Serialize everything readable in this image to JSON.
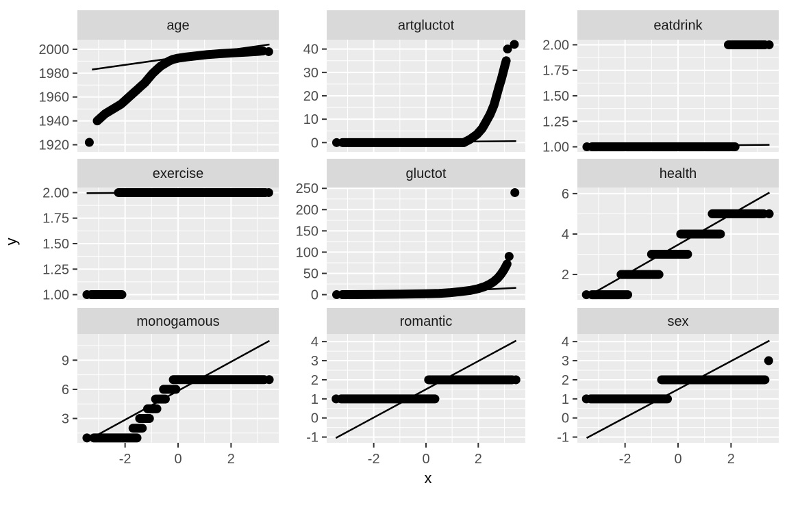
{
  "figure": {
    "xlabel": "x",
    "ylabel": "y"
  },
  "colors": {
    "background": "#FFFFFF",
    "panel_bg": "#EBEBEB",
    "strip_bg": "#D9D9D9",
    "grid": "#FFFFFF",
    "ticks": "#333333",
    "axis_text": "#4D4D4D",
    "strip_text": "#1A1A1A",
    "axis_title": "#000000",
    "points": "#000000",
    "ref_line": "#000000"
  },
  "chart_data": {
    "type": "scatter",
    "layout_hint": "3x3 ggplot2 facet_wrap grid of QQ plots, free y scales, grey panels with white gridlines, black points and black reference line, x axis only on bottom row",
    "xlabel": "x",
    "ylabel": "y",
    "x_domain": [
      -3.8,
      3.8
    ],
    "x_ticks": [
      -2,
      0,
      2
    ],
    "x_tick_labels": [
      "-2",
      "0",
      "2"
    ],
    "x_minor": [
      -3,
      -1,
      1,
      3
    ],
    "facets": [
      {
        "label": "age",
        "y_domain": [
          1914,
          2008
        ],
        "y_ticks": [
          1920,
          1940,
          1960,
          1980,
          2000
        ],
        "y_tick_labels": [
          "1920",
          "1940",
          "1960",
          "1980",
          "2000"
        ],
        "y_minor": [
          1930,
          1950,
          1970,
          1990
        ],
        "ref_line": [
          [
            -3.25,
            1983
          ],
          [
            3.45,
            2004
          ]
        ],
        "bands": [],
        "curve": [
          [
            -3.05,
            1940
          ],
          [
            -2.9,
            1943
          ],
          [
            -2.75,
            1946
          ],
          [
            -2.6,
            1948
          ],
          [
            -2.45,
            1950
          ],
          [
            -2.3,
            1952
          ],
          [
            -2.15,
            1954
          ],
          [
            -2.0,
            1957
          ],
          [
            -1.85,
            1960
          ],
          [
            -1.7,
            1963
          ],
          [
            -1.55,
            1966
          ],
          [
            -1.4,
            1969
          ],
          [
            -1.25,
            1972
          ],
          [
            -1.1,
            1976
          ],
          [
            -0.95,
            1980
          ],
          [
            -0.8,
            1983
          ],
          [
            -0.65,
            1986
          ],
          [
            -0.5,
            1988
          ],
          [
            -0.35,
            1990
          ],
          [
            -0.2,
            1991.5
          ],
          [
            0,
            1992.5
          ],
          [
            0.3,
            1993.5
          ],
          [
            0.7,
            1994.5
          ],
          [
            1.1,
            1995.5
          ],
          [
            1.6,
            1996.3
          ],
          [
            2.1,
            1997
          ],
          [
            2.6,
            1997.6
          ],
          [
            3.0,
            1998.2
          ],
          [
            3.2,
            1998.6
          ]
        ],
        "dots": [
          [
            -3.35,
            1922
          ],
          [
            3.42,
            1998
          ]
        ]
      },
      {
        "label": "artgluctot",
        "y_domain": [
          -4,
          44
        ],
        "y_ticks": [
          0,
          10,
          20,
          30,
          40
        ],
        "y_tick_labels": [
          "0",
          "10",
          "20",
          "30",
          "40"
        ],
        "y_minor": [
          5,
          15,
          25,
          35
        ],
        "ref_line": [
          [
            -3.45,
            0
          ],
          [
            3.45,
            0.6
          ]
        ],
        "bands": [
          [
            0,
            -3.2,
            1.45
          ]
        ],
        "curve": [
          [
            1.45,
            0
          ],
          [
            1.7,
            1.5
          ],
          [
            1.95,
            3.5
          ],
          [
            2.15,
            6
          ],
          [
            2.3,
            9
          ],
          [
            2.45,
            12
          ],
          [
            2.6,
            16
          ],
          [
            2.7,
            20
          ],
          [
            2.8,
            24
          ],
          [
            2.88,
            27
          ],
          [
            2.95,
            30
          ],
          [
            3.02,
            33
          ],
          [
            3.07,
            35
          ]
        ],
        "dots": [
          [
            -3.42,
            0
          ],
          [
            3.12,
            40
          ],
          [
            3.38,
            42
          ]
        ]
      },
      {
        "label": "eatdrink",
        "y_domain": [
          0.95,
          2.05
        ],
        "y_ticks": [
          1.0,
          1.25,
          1.5,
          1.75,
          2.0
        ],
        "y_tick_labels": [
          "1.00",
          "1.25",
          "1.50",
          "1.75",
          "2.00"
        ],
        "y_minor": [
          1.125,
          1.375,
          1.625,
          1.875
        ],
        "ref_line": [
          [
            -3.45,
            1.0
          ],
          [
            3.45,
            1.02
          ]
        ],
        "bands": [
          [
            1,
            -3.25,
            2.15
          ],
          [
            2,
            1.9,
            3.28
          ]
        ],
        "curve": null,
        "dots": [
          [
            -3.44,
            1
          ],
          [
            3.44,
            2
          ]
        ]
      },
      {
        "label": "exercise",
        "y_domain": [
          0.95,
          2.05
        ],
        "y_ticks": [
          1.0,
          1.25,
          1.5,
          1.75,
          2.0
        ],
        "y_tick_labels": [
          "1.00",
          "1.25",
          "1.50",
          "1.75",
          "2.00"
        ],
        "y_minor": [
          1.125,
          1.375,
          1.625,
          1.875
        ],
        "ref_line": [
          [
            -3.45,
            1.995
          ],
          [
            3.45,
            2.01
          ]
        ],
        "bands": [
          [
            1,
            -3.28,
            -2.12
          ],
          [
            2,
            -2.25,
            3.3
          ]
        ],
        "curve": null,
        "dots": [
          [
            -3.44,
            1
          ],
          [
            3.42,
            2
          ]
        ]
      },
      {
        "label": "gluctot",
        "y_domain": [
          -12,
          252
        ],
        "y_ticks": [
          0,
          50,
          100,
          150,
          200,
          250
        ],
        "y_tick_labels": [
          "0",
          "50",
          "100",
          "150",
          "200",
          "250"
        ],
        "y_minor": [
          25,
          75,
          125,
          175,
          225
        ],
        "ref_line": [
          [
            -3.45,
            -6
          ],
          [
            3.45,
            16
          ]
        ],
        "bands": [],
        "curve": [
          [
            -3.2,
            0
          ],
          [
            -2.0,
            0.5
          ],
          [
            -1.0,
            1
          ],
          [
            0,
            2
          ],
          [
            0.5,
            3
          ],
          [
            0.9,
            4.5
          ],
          [
            1.3,
            7
          ],
          [
            1.7,
            10
          ],
          [
            2.0,
            14
          ],
          [
            2.25,
            19
          ],
          [
            2.45,
            25
          ],
          [
            2.6,
            31
          ],
          [
            2.75,
            39
          ],
          [
            2.87,
            48
          ],
          [
            2.97,
            57
          ],
          [
            3.05,
            66
          ],
          [
            3.1,
            72
          ]
        ],
        "dots": [
          [
            -3.42,
            0
          ],
          [
            3.18,
            90
          ],
          [
            3.4,
            240
          ]
        ]
      },
      {
        "label": "health",
        "y_domain": [
          0.75,
          6.3
        ],
        "y_ticks": [
          2,
          4,
          6
        ],
        "y_tick_labels": [
          "2",
          "4",
          "6"
        ],
        "y_minor": [
          1,
          3,
          5
        ],
        "ref_line": [
          [
            -3.3,
            1.0
          ],
          [
            3.45,
            6.05
          ]
        ],
        "bands": [
          [
            1,
            -3.25,
            -1.9
          ],
          [
            2,
            -2.15,
            -0.72
          ],
          [
            3,
            -1.0,
            0.36
          ],
          [
            4,
            0.1,
            1.6
          ],
          [
            5,
            1.29,
            3.23
          ]
        ],
        "curve": null,
        "dots": [
          [
            -3.46,
            1
          ],
          [
            3.44,
            5
          ]
        ]
      },
      {
        "label": "monogamous",
        "y_domain": [
          0.5,
          11.7
        ],
        "y_ticks": [
          3,
          6,
          9
        ],
        "y_tick_labels": [
          "3",
          "6",
          "9"
        ],
        "y_minor": [
          1.5,
          4.5,
          7.5,
          10.5
        ],
        "ref_line": [
          [
            -3.25,
            1.0
          ],
          [
            3.45,
            11.0
          ]
        ],
        "bands": [
          [
            1,
            -3.18,
            -1.55
          ],
          [
            2,
            -1.7,
            -1.35
          ],
          [
            3,
            -1.45,
            -1.08
          ],
          [
            4,
            -1.15,
            -0.8
          ],
          [
            5,
            -0.85,
            -0.48
          ],
          [
            6,
            -0.55,
            -0.08
          ],
          [
            7,
            -0.18,
            3.25
          ]
        ],
        "curve": null,
        "dots": [
          [
            -3.44,
            1
          ],
          [
            3.44,
            7
          ]
        ]
      },
      {
        "label": "romantic",
        "y_domain": [
          -1.3,
          4.4
        ],
        "y_ticks": [
          -1,
          0,
          1,
          2,
          3,
          4
        ],
        "y_tick_labels": [
          "-1",
          "0",
          "1",
          "2",
          "3",
          "4"
        ],
        "y_minor": [
          -0.5,
          0.5,
          1.5,
          2.5,
          3.5
        ],
        "ref_line": [
          [
            -3.45,
            -1.05
          ],
          [
            3.45,
            4.05
          ]
        ],
        "bands": [
          [
            1,
            -3.25,
            0.34
          ],
          [
            2,
            0.1,
            3.3
          ]
        ],
        "curve": null,
        "dots": [
          [
            -3.44,
            1
          ],
          [
            3.44,
            2
          ]
        ]
      },
      {
        "label": "sex",
        "y_domain": [
          -1.3,
          4.4
        ],
        "y_ticks": [
          -1,
          0,
          1,
          2,
          3,
          4
        ],
        "y_tick_labels": [
          "-1",
          "0",
          "1",
          "2",
          "3",
          "4"
        ],
        "y_minor": [
          -0.5,
          0.5,
          1.5,
          2.5,
          3.5
        ],
        "ref_line": [
          [
            -3.45,
            -1.05
          ],
          [
            3.45,
            4.05
          ]
        ],
        "bands": [
          [
            1,
            -3.3,
            -0.4
          ],
          [
            2,
            -0.62,
            3.28
          ]
        ],
        "curve": null,
        "dots": [
          [
            -3.46,
            1
          ],
          [
            3.42,
            3
          ]
        ]
      }
    ]
  }
}
